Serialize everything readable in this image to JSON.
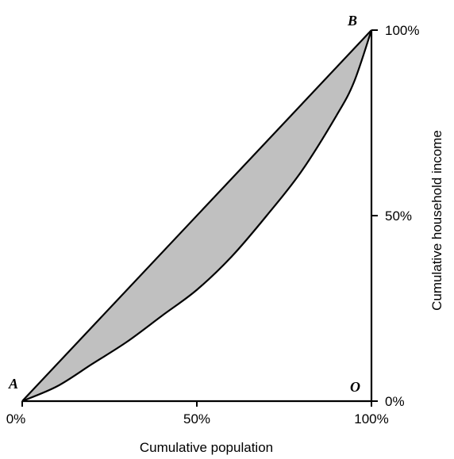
{
  "chart_data": {
    "type": "line",
    "title": "",
    "xlabel": "Cumulative population",
    "ylabel": "Cumulative household income",
    "xlim": [
      0,
      100
    ],
    "ylim": [
      0,
      100
    ],
    "x_ticks": [
      "0%",
      "50%",
      "100%"
    ],
    "y_ticks": [
      "0%",
      "50%",
      "100%"
    ],
    "y_axis_side": "right",
    "grid": false,
    "legend": "none",
    "series": [
      {
        "role": "line-of-equality",
        "x": [
          0,
          100
        ],
        "y": [
          0,
          100
        ],
        "color": "#000000"
      },
      {
        "role": "lorenz-curve",
        "x": [
          0,
          10,
          20,
          30,
          40,
          50,
          60,
          70,
          80,
          90,
          95,
          100
        ],
        "y": [
          0,
          4,
          10,
          16,
          23,
          30,
          39,
          50,
          62,
          77,
          86,
          100
        ],
        "color": "#000000"
      }
    ],
    "shaded_region": {
      "between": [
        "line-of-equality",
        "lorenz-curve"
      ],
      "color": "#c0c0c0"
    },
    "point_labels": [
      {
        "text": "A",
        "x": 0,
        "y": 0
      },
      {
        "text": "B",
        "x": 100,
        "y": 100
      },
      {
        "text": "O",
        "x": 100,
        "y": 0
      }
    ]
  }
}
